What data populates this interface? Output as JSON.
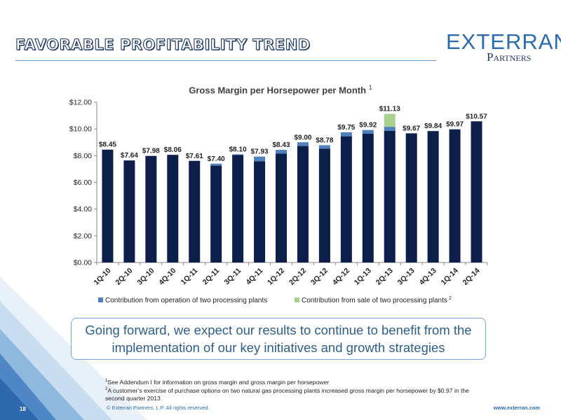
{
  "slide": {
    "title": "FAVORABLE PROFITABILITY TREND",
    "logo_main": "EXTERRAN",
    "logo_sub": "Partners",
    "logo_reg": "®",
    "callout": "Going forward, we expect our results to continue to benefit from the implementation of our key initiatives and growth strategies",
    "footnote1_marker": "1",
    "footnote1": "See Addendum I for information on gross margin and gross margin per horsepower",
    "footnote2_marker": "2",
    "footnote2": "A customer’s exercise of purchase options on two natural gas processing plants increased gross margin per horsepower by $0.97 in the second quarter 2013",
    "copyright": "© Exterran Partners, L.P. All rights reserved.",
    "website": "www.exterran.com",
    "page_number": "18"
  },
  "colors": {
    "base": "#0c1f4a",
    "operation": "#4f81bd",
    "sale": "#a9d18e",
    "title_blue": "#1f3864",
    "accent": "#5b9bd5"
  },
  "chart_data": {
    "type": "bar",
    "title": "Gross Margin per Horsepower per Month",
    "title_superscript": "1",
    "stacked": true,
    "categories": [
      "1Q-10",
      "2Q-10",
      "3Q-10",
      "4Q-10",
      "1Q-11",
      "2Q-11",
      "3Q-11",
      "4Q-11",
      "1Q-12",
      "2Q-12",
      "3Q-12",
      "4Q-12",
      "1Q-13",
      "2Q-13",
      "3Q-13",
      "4Q-13",
      "1Q-14",
      "2Q-14"
    ],
    "series": [
      {
        "values": [
          8.45,
          7.64,
          7.98,
          8.06,
          7.61,
          7.25,
          8.05,
          7.58,
          8.15,
          8.72,
          8.52,
          9.45,
          9.64,
          9.86,
          9.67,
          9.84,
          9.97,
          10.57
        ]
      },
      {
        "name": "Contribution from operation of two processing plants",
        "values": [
          0,
          0,
          0,
          0,
          0,
          0.15,
          0.05,
          0.35,
          0.28,
          0.28,
          0.26,
          0.3,
          0.28,
          0.3,
          0,
          0,
          0,
          0
        ]
      },
      {
        "name": "Contribution from sale of two processing plants",
        "name_superscript": "2",
        "values": [
          0,
          0,
          0,
          0,
          0,
          0,
          0,
          0,
          0,
          0,
          0,
          0,
          0,
          0.97,
          0,
          0,
          0,
          0
        ]
      }
    ],
    "totals": [
      "$8.45",
      "$7.64",
      "$7.98",
      "$8.06",
      "$7.61",
      "$7.40",
      "$8.10",
      "$7.93",
      "$8.43",
      "$9.00",
      "$8.78",
      "$9.75",
      "$9.92",
      "$11.13",
      "$9.67",
      "$9.84",
      "$9.97",
      "$10.57"
    ],
    "ylim": [
      0,
      12
    ],
    "yticks": [
      0,
      2,
      4,
      6,
      8,
      10,
      12
    ],
    "ytick_labels": [
      "$0.00",
      "$2.00",
      "$4.00",
      "$6.00",
      "$8.00",
      "$10.00",
      "$12.00"
    ],
    "xlabel": "",
    "ylabel": "",
    "legend_position": "bottom",
    "grid": false
  }
}
